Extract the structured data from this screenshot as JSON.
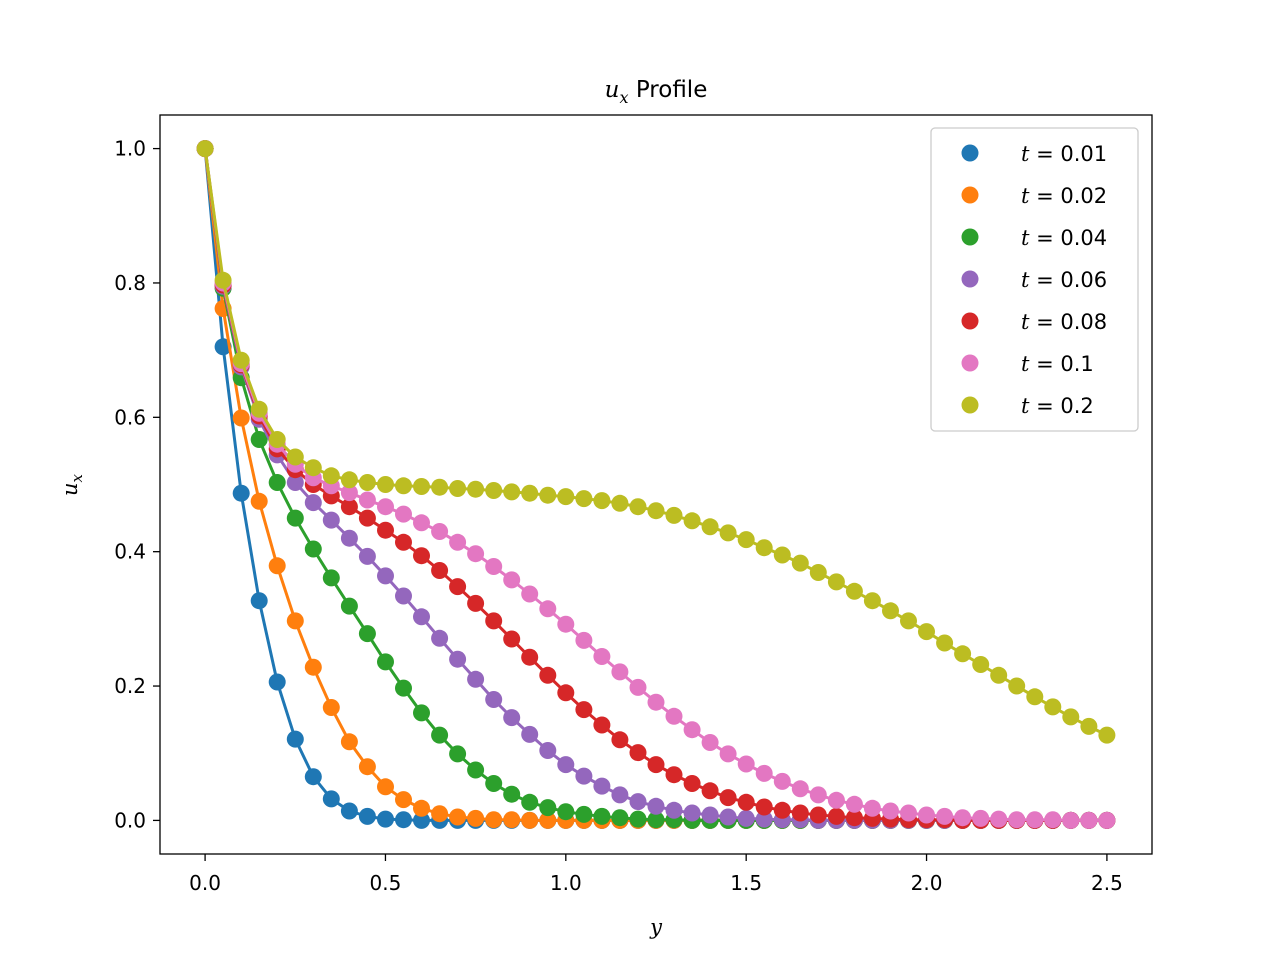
{
  "chart_data": {
    "type": "line",
    "title_var": "u",
    "title_sub": "x",
    "title_rest": " Profile",
    "xlabel": "y",
    "ylabel_var": "u",
    "ylabel_sub": "x",
    "xlim": [
      -0.125,
      2.625
    ],
    "ylim": [
      -0.05,
      1.05
    ],
    "xticks": [
      0.0,
      0.5,
      1.0,
      1.5,
      2.0,
      2.5
    ],
    "xtick_labels": [
      "0.0",
      "0.5",
      "1.0",
      "1.5",
      "2.0",
      "2.5"
    ],
    "yticks": [
      0.0,
      0.2,
      0.4,
      0.6,
      0.8,
      1.0
    ],
    "ytick_labels": [
      "0.0",
      "0.2",
      "0.4",
      "0.6",
      "0.8",
      "1.0"
    ],
    "legend_position": "top-right",
    "x": [
      0.0,
      0.05,
      0.1,
      0.15,
      0.2,
      0.25,
      0.3,
      0.35,
      0.4,
      0.45,
      0.5,
      0.55,
      0.6,
      0.65,
      0.7,
      0.75,
      0.8,
      0.85,
      0.9,
      0.95,
      1.0,
      1.05,
      1.1,
      1.15,
      1.2,
      1.25,
      1.3,
      1.35,
      1.4,
      1.45,
      1.5,
      1.55,
      1.6,
      1.65,
      1.7,
      1.75,
      1.8,
      1.85,
      1.9,
      1.95,
      2.0,
      2.05,
      2.1,
      2.15,
      2.2,
      2.25,
      2.3,
      2.35,
      2.4,
      2.45,
      2.5
    ],
    "series": [
      {
        "name": "t = 0.01",
        "label_var": "t",
        "label_val": " = 0.01",
        "color": "#1f77b4",
        "values": [
          1.0,
          0.705,
          0.487,
          0.327,
          0.206,
          0.121,
          0.065,
          0.032,
          0.014,
          0.006,
          0.002,
          0.001,
          0.0,
          0.0,
          0.0,
          0.0,
          0.0,
          0.0,
          0.0,
          0.0,
          0.0,
          0.0,
          0.0,
          0.0,
          0.0,
          0.0,
          0.0,
          0.0,
          0.0,
          0.0,
          0.0,
          0.0,
          0.0,
          0.0,
          0.0,
          0.0,
          0.0,
          0.0,
          0.0,
          0.0,
          0.0,
          0.0,
          0.0,
          0.0,
          0.0,
          0.0,
          0.0,
          0.0,
          0.0,
          0.0,
          0.0
        ]
      },
      {
        "name": "t = 0.02",
        "label_var": "t",
        "label_val": " = 0.02",
        "color": "#ff7f0e",
        "values": [
          1.0,
          0.762,
          0.599,
          0.475,
          0.379,
          0.297,
          0.228,
          0.168,
          0.117,
          0.08,
          0.05,
          0.031,
          0.018,
          0.01,
          0.005,
          0.003,
          0.001,
          0.001,
          0.0,
          0.0,
          0.0,
          0.0,
          0.0,
          0.0,
          0.0,
          0.0,
          0.0,
          0.0,
          0.0,
          0.0,
          0.0,
          0.0,
          0.0,
          0.0,
          0.0,
          0.0,
          0.0,
          0.0,
          0.0,
          0.0,
          0.0,
          0.0,
          0.0,
          0.0,
          0.0,
          0.0,
          0.0,
          0.0,
          0.0,
          0.0,
          0.0
        ]
      },
      {
        "name": "t = 0.04",
        "label_var": "t",
        "label_val": " = 0.04",
        "color": "#2ca02c",
        "values": [
          1.0,
          0.792,
          0.659,
          0.567,
          0.503,
          0.45,
          0.404,
          0.361,
          0.319,
          0.278,
          0.236,
          0.197,
          0.16,
          0.127,
          0.099,
          0.075,
          0.055,
          0.039,
          0.027,
          0.019,
          0.013,
          0.009,
          0.006,
          0.004,
          0.002,
          0.001,
          0.001,
          0.0,
          0.0,
          0.0,
          0.0,
          0.0,
          0.0,
          0.0,
          0.0,
          0.0,
          0.0,
          0.0,
          0.0,
          0.0,
          0.0,
          0.0,
          0.0,
          0.0,
          0.0,
          0.0,
          0.0,
          0.0,
          0.0,
          0.0,
          0.0
        ]
      },
      {
        "name": "t = 0.06",
        "label_var": "t",
        "label_val": " = 0.06",
        "color": "#9467bd",
        "values": [
          1.0,
          0.795,
          0.675,
          0.597,
          0.544,
          0.503,
          0.473,
          0.447,
          0.42,
          0.393,
          0.364,
          0.334,
          0.303,
          0.271,
          0.24,
          0.21,
          0.18,
          0.153,
          0.128,
          0.104,
          0.083,
          0.066,
          0.051,
          0.038,
          0.028,
          0.021,
          0.015,
          0.011,
          0.008,
          0.005,
          0.003,
          0.002,
          0.001,
          0.001,
          0.0,
          0.0,
          0.0,
          0.0,
          0.0,
          0.0,
          0.0,
          0.0,
          0.0,
          0.0,
          0.0,
          0.0,
          0.0,
          0.0,
          0.0,
          0.0,
          0.0
        ]
      },
      {
        "name": "t = 0.08",
        "label_var": "t",
        "label_val": " = 0.08",
        "color": "#d62728",
        "values": [
          1.0,
          0.797,
          0.678,
          0.602,
          0.553,
          0.522,
          0.5,
          0.483,
          0.467,
          0.45,
          0.432,
          0.414,
          0.394,
          0.372,
          0.348,
          0.323,
          0.297,
          0.27,
          0.243,
          0.216,
          0.19,
          0.165,
          0.142,
          0.12,
          0.101,
          0.083,
          0.068,
          0.055,
          0.044,
          0.034,
          0.027,
          0.02,
          0.015,
          0.011,
          0.008,
          0.006,
          0.004,
          0.003,
          0.002,
          0.001,
          0.001,
          0.001,
          0.0,
          0.0,
          0.0,
          0.0,
          0.0,
          0.0,
          0.0,
          0.0,
          0.0
        ]
      },
      {
        "name": "t = 0.1",
        "label_var": "t",
        "label_val": " = 0.1",
        "color": "#e377c2",
        "values": [
          1.0,
          0.8,
          0.68,
          0.606,
          0.56,
          0.53,
          0.51,
          0.498,
          0.488,
          0.477,
          0.467,
          0.456,
          0.443,
          0.43,
          0.414,
          0.397,
          0.378,
          0.358,
          0.337,
          0.315,
          0.292,
          0.268,
          0.244,
          0.221,
          0.198,
          0.176,
          0.155,
          0.135,
          0.116,
          0.099,
          0.084,
          0.07,
          0.058,
          0.047,
          0.038,
          0.03,
          0.024,
          0.018,
          0.014,
          0.011,
          0.008,
          0.006,
          0.004,
          0.003,
          0.002,
          0.001,
          0.001,
          0.001,
          0.0,
          0.0,
          0.0
        ]
      },
      {
        "name": "t = 0.2",
        "label_var": "t",
        "label_val": " = 0.2",
        "color": "#bcbd22",
        "values": [
          1.0,
          0.804,
          0.685,
          0.612,
          0.567,
          0.541,
          0.525,
          0.513,
          0.507,
          0.503,
          0.5,
          0.498,
          0.497,
          0.496,
          0.494,
          0.493,
          0.491,
          0.489,
          0.487,
          0.484,
          0.482,
          0.479,
          0.476,
          0.472,
          0.467,
          0.461,
          0.454,
          0.446,
          0.437,
          0.428,
          0.418,
          0.406,
          0.395,
          0.383,
          0.369,
          0.355,
          0.341,
          0.327,
          0.312,
          0.297,
          0.281,
          0.264,
          0.248,
          0.232,
          0.216,
          0.2,
          0.184,
          0.169,
          0.154,
          0.14,
          0.127
        ]
      }
    ]
  }
}
